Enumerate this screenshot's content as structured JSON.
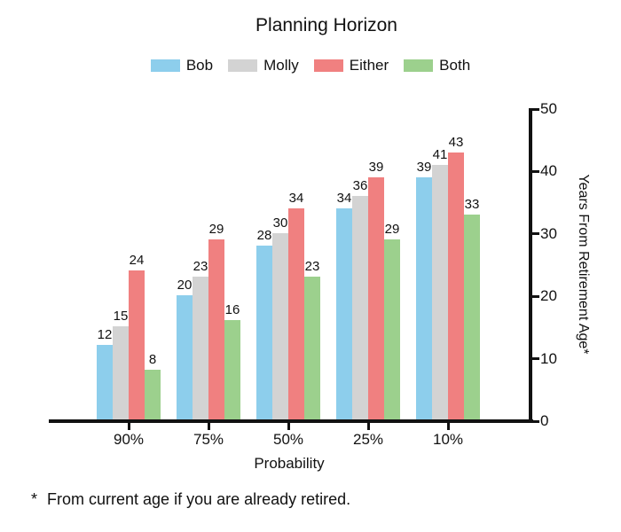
{
  "title": "Planning Horizon",
  "legend": {
    "items": [
      {
        "label": "Bob",
        "color": "#8DCEEC"
      },
      {
        "label": "Molly",
        "color": "#D3D3D3"
      },
      {
        "label": "Either",
        "color": "#F08080"
      },
      {
        "label": "Both",
        "color": "#9CD08D"
      }
    ]
  },
  "chart_data": {
    "type": "bar",
    "title": "Planning Horizon",
    "categories": [
      "90%",
      "75%",
      "50%",
      "25%",
      "10%"
    ],
    "series": [
      {
        "name": "Bob",
        "color": "#8DCEEC",
        "values": [
          12,
          20,
          28,
          34,
          39
        ]
      },
      {
        "name": "Molly",
        "color": "#D3D3D3",
        "values": [
          15,
          23,
          30,
          36,
          41
        ]
      },
      {
        "name": "Either",
        "color": "#F08080",
        "values": [
          24,
          29,
          34,
          39,
          43
        ]
      },
      {
        "name": "Both",
        "color": "#9CD08D",
        "values": [
          8,
          16,
          23,
          29,
          33
        ]
      }
    ],
    "xlabel": "Probability",
    "ylabel": "Years From Retirement Age*",
    "ylim": [
      0,
      50
    ],
    "yticks": [
      0,
      10,
      20,
      30,
      40,
      50
    ],
    "legend_position": "top",
    "grid": false,
    "bar_labels": true,
    "y_axis_side": "right"
  },
  "footnote": {
    "marker": "*",
    "text": "From current age if you are already retired."
  },
  "colors": {
    "axis": "#111111",
    "text": "#111111",
    "background": "#FFFFFF"
  }
}
